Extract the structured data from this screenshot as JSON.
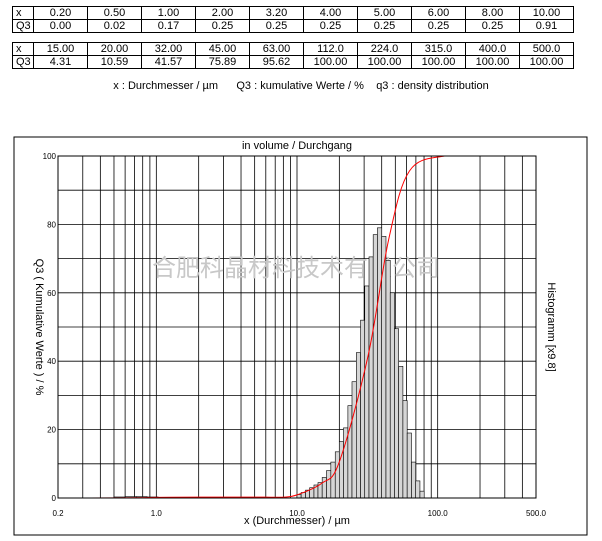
{
  "table": {
    "row_labels": [
      "x",
      "Q3"
    ],
    "block1": {
      "x": [
        "0.20",
        "0.50",
        "1.00",
        "2.00",
        "3.20",
        "4.00",
        "5.00",
        "6.00",
        "8.00",
        "10.00"
      ],
      "q3": [
        "0.00",
        "0.02",
        "0.17",
        "0.25",
        "0.25",
        "0.25",
        "0.25",
        "0.25",
        "0.25",
        "0.91"
      ]
    },
    "block2": {
      "x": [
        "15.00",
        "20.00",
        "32.00",
        "45.00",
        "63.00",
        "112.0",
        "224.0",
        "315.0",
        "400.0",
        "500.0"
      ],
      "q3": [
        "4.31",
        "10.59",
        "41.57",
        "75.89",
        "95.62",
        "100.00",
        "100.00",
        "100.00",
        "100.00",
        "100.00"
      ]
    }
  },
  "legend_line": {
    "x": "x : Durchmesser / µm",
    "q3": "Q3 : kumulative Werte / %",
    "q3_density": "q3 : density distribution"
  },
  "watermark": "合肥科晶材料技术有限公司",
  "chart_data": {
    "type": "bar",
    "title": "in volume / Durchgang",
    "xlabel": "x (Durchmesser) / µm",
    "ylabel": "Q3 ( Kumulative Werte ) / %",
    "y2label": "Histogramm [x9.8]",
    "x_scale": "log",
    "xlim": [
      0.2,
      500
    ],
    "ylim": [
      0,
      100
    ],
    "x_tick_labels": [
      {
        "value": 0.2,
        "label": "0.2"
      },
      {
        "value": 1,
        "label": "1.0"
      },
      {
        "value": 10,
        "label": "10.0"
      },
      {
        "value": 100,
        "label": "100.0"
      },
      {
        "value": 500,
        "label": "500.0"
      }
    ],
    "y_tick_labels": [
      {
        "value": 0,
        "label": "0"
      },
      {
        "value": 20,
        "label": "20"
      },
      {
        "value": 40,
        "label": "40"
      },
      {
        "value": 60,
        "label": "60"
      },
      {
        "value": 80,
        "label": "80"
      },
      {
        "value": 100,
        "label": "100"
      }
    ],
    "grid": true,
    "cumulative_curve": {
      "color": "#ff0000",
      "x": [
        0.2,
        0.5,
        1.0,
        2.0,
        3.2,
        4.0,
        5.0,
        6.0,
        8.0,
        10.0,
        15.0,
        20.0,
        32.0,
        45.0,
        63.0,
        112.0,
        224.0,
        315.0,
        400.0,
        500.0
      ],
      "y": [
        0.0,
        0.02,
        0.17,
        0.25,
        0.25,
        0.25,
        0.25,
        0.25,
        0.25,
        0.91,
        4.31,
        10.59,
        41.57,
        75.89,
        95.62,
        100.0,
        100.0,
        100.0,
        100.0,
        100.0
      ]
    },
    "histogram": {
      "fill": "#d6d6d6",
      "stroke": "#000000",
      "bins": [
        {
          "x0": 0.5,
          "x1": 0.6,
          "y": 0.3
        },
        {
          "x0": 0.6,
          "x1": 0.72,
          "y": 0.4
        },
        {
          "x0": 0.72,
          "x1": 0.86,
          "y": 0.4
        },
        {
          "x0": 0.86,
          "x1": 1.03,
          "y": 0.3
        },
        {
          "x0": 1.03,
          "x1": 1.24,
          "y": 0.2
        },
        {
          "x0": 10.0,
          "x1": 10.7,
          "y": 1.0
        },
        {
          "x0": 10.7,
          "x1": 11.5,
          "y": 1.6
        },
        {
          "x0": 11.5,
          "x1": 12.3,
          "y": 2.3
        },
        {
          "x0": 12.3,
          "x1": 13.2,
          "y": 3.0
        },
        {
          "x0": 13.2,
          "x1": 14.1,
          "y": 3.8
        },
        {
          "x0": 14.1,
          "x1": 15.1,
          "y": 4.5
        },
        {
          "x0": 15.1,
          "x1": 16.2,
          "y": 6.0
        },
        {
          "x0": 16.2,
          "x1": 17.4,
          "y": 8.0
        },
        {
          "x0": 17.4,
          "x1": 18.7,
          "y": 10.5
        },
        {
          "x0": 18.7,
          "x1": 20.0,
          "y": 13.5
        },
        {
          "x0": 20.0,
          "x1": 21.4,
          "y": 16.5
        },
        {
          "x0": 21.4,
          "x1": 23.0,
          "y": 20.5
        },
        {
          "x0": 23.0,
          "x1": 24.6,
          "y": 27.0
        },
        {
          "x0": 24.6,
          "x1": 26.4,
          "y": 34.0
        },
        {
          "x0": 26.4,
          "x1": 28.3,
          "y": 42.5
        },
        {
          "x0": 28.3,
          "x1": 30.3,
          "y": 52.0
        },
        {
          "x0": 30.3,
          "x1": 32.5,
          "y": 62.0
        },
        {
          "x0": 32.5,
          "x1": 34.8,
          "y": 70.5
        },
        {
          "x0": 34.8,
          "x1": 37.3,
          "y": 77.0
        },
        {
          "x0": 37.3,
          "x1": 40.0,
          "y": 79.0
        },
        {
          "x0": 40.0,
          "x1": 42.9,
          "y": 76.5
        },
        {
          "x0": 42.9,
          "x1": 46.0,
          "y": 69.5
        },
        {
          "x0": 46.0,
          "x1": 49.3,
          "y": 60.0
        },
        {
          "x0": 49.3,
          "x1": 52.8,
          "y": 49.5
        },
        {
          "x0": 52.8,
          "x1": 56.6,
          "y": 38.5
        },
        {
          "x0": 56.6,
          "x1": 60.7,
          "y": 28.5
        },
        {
          "x0": 60.7,
          "x1": 65.1,
          "y": 19.0
        },
        {
          "x0": 65.1,
          "x1": 69.8,
          "y": 10.5
        },
        {
          "x0": 69.8,
          "x1": 74.8,
          "y": 5.0
        },
        {
          "x0": 74.8,
          "x1": 80.2,
          "y": 2.0
        }
      ]
    }
  }
}
